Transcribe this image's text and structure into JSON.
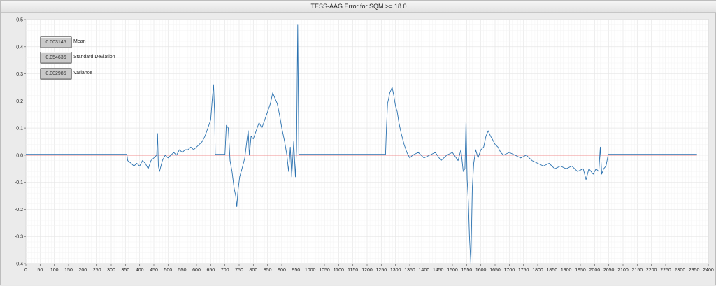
{
  "window": {
    "title": "TESS-AAG Error for SQM >= 18.0"
  },
  "stats": [
    {
      "value": "0.003145",
      "label": "Mean"
    },
    {
      "value": "0.054636",
      "label": "Standard Deviation"
    },
    {
      "value": "0.002985",
      "label": "Variance"
    }
  ],
  "colors": {
    "series": "#2b72b0",
    "reference": "#f07070",
    "grid": "#e6e6e6",
    "background": "#ffffff"
  },
  "chart_data": {
    "type": "line",
    "title": "TESS-AAG Error for SQM >= 18.0",
    "xlabel": "",
    "ylabel": "",
    "xlim": [
      0,
      2400
    ],
    "ylim": [
      -0.4,
      0.5
    ],
    "x_ticks": [
      0,
      50,
      100,
      150,
      200,
      250,
      300,
      350,
      400,
      450,
      500,
      550,
      600,
      650,
      700,
      750,
      800,
      850,
      900,
      950,
      1000,
      1050,
      1100,
      1150,
      1200,
      1250,
      1300,
      1350,
      1400,
      1450,
      1500,
      1550,
      1600,
      1650,
      1700,
      1750,
      1800,
      1850,
      1900,
      1950,
      2000,
      2050,
      2100,
      2150,
      2200,
      2250,
      2300,
      2350,
      2400
    ],
    "y_ticks": [
      -0.4,
      -0.3,
      -0.2,
      -0.1,
      0.0,
      0.1,
      0.2,
      0.3,
      0.4,
      0.5
    ],
    "y_tick_labels": [
      "-0.4",
      "-0.3",
      "-0.2",
      "-0.1",
      "0.0",
      "0.1",
      "0.2",
      "0.3",
      "0.4",
      "0.5"
    ],
    "grid": true,
    "series": [
      {
        "style": "line",
        "points": [
          [
            0,
            0.003
          ],
          [
            355,
            0.003
          ],
          [
            358,
            -0.02
          ],
          [
            370,
            -0.03
          ],
          [
            380,
            -0.04
          ],
          [
            390,
            -0.03
          ],
          [
            400,
            -0.04
          ],
          [
            410,
            -0.02
          ],
          [
            420,
            -0.03
          ],
          [
            430,
            -0.05
          ],
          [
            440,
            -0.02
          ],
          [
            450,
            -0.01
          ],
          [
            460,
            0.0
          ],
          [
            463,
            0.08
          ],
          [
            466,
            -0.04
          ],
          [
            470,
            -0.06
          ],
          [
            480,
            -0.02
          ],
          [
            490,
            0.0
          ],
          [
            500,
            -0.01
          ],
          [
            510,
            0.0
          ],
          [
            520,
            0.01
          ],
          [
            530,
            0.0
          ],
          [
            540,
            0.02
          ],
          [
            550,
            0.01
          ],
          [
            560,
            0.02
          ],
          [
            570,
            0.02
          ],
          [
            580,
            0.03
          ],
          [
            590,
            0.02
          ],
          [
            600,
            0.03
          ],
          [
            610,
            0.04
          ],
          [
            620,
            0.05
          ],
          [
            630,
            0.07
          ],
          [
            640,
            0.1
          ],
          [
            650,
            0.13
          ],
          [
            655,
            0.2
          ],
          [
            660,
            0.26
          ],
          [
            664,
            0.15
          ],
          [
            666,
            0.003
          ],
          [
            700,
            0.003
          ],
          [
            705,
            0.11
          ],
          [
            712,
            0.1
          ],
          [
            718,
            -0.02
          ],
          [
            725,
            -0.06
          ],
          [
            732,
            -0.12
          ],
          [
            738,
            -0.15
          ],
          [
            742,
            -0.19
          ],
          [
            746,
            -0.13
          ],
          [
            752,
            -0.08
          ],
          [
            760,
            -0.05
          ],
          [
            770,
            -0.01
          ],
          [
            778,
            0.06
          ],
          [
            782,
            0.09
          ],
          [
            786,
            0.0
          ],
          [
            792,
            0.07
          ],
          [
            800,
            0.06
          ],
          [
            810,
            0.09
          ],
          [
            820,
            0.12
          ],
          [
            830,
            0.1
          ],
          [
            840,
            0.13
          ],
          [
            850,
            0.16
          ],
          [
            860,
            0.19
          ],
          [
            868,
            0.23
          ],
          [
            876,
            0.21
          ],
          [
            884,
            0.19
          ],
          [
            892,
            0.15
          ],
          [
            900,
            0.1
          ],
          [
            910,
            0.05
          ],
          [
            918,
            0.0
          ],
          [
            924,
            -0.06
          ],
          [
            930,
            0.03
          ],
          [
            935,
            -0.08
          ],
          [
            942,
            0.05
          ],
          [
            948,
            -0.08
          ],
          [
            952,
            0.02
          ],
          [
            956,
            0.48
          ],
          [
            960,
            0.003
          ],
          [
            1265,
            0.003
          ],
          [
            1268,
            0.1
          ],
          [
            1272,
            0.19
          ],
          [
            1280,
            0.23
          ],
          [
            1288,
            0.25
          ],
          [
            1294,
            0.22
          ],
          [
            1300,
            0.18
          ],
          [
            1306,
            0.16
          ],
          [
            1312,
            0.12
          ],
          [
            1320,
            0.08
          ],
          [
            1330,
            0.04
          ],
          [
            1340,
            0.01
          ],
          [
            1350,
            -0.01
          ],
          [
            1360,
            0.0
          ],
          [
            1380,
            0.01
          ],
          [
            1400,
            -0.01
          ],
          [
            1420,
            0.0
          ],
          [
            1440,
            0.01
          ],
          [
            1460,
            -0.02
          ],
          [
            1480,
            0.0
          ],
          [
            1500,
            0.01
          ],
          [
            1520,
            -0.02
          ],
          [
            1530,
            0.02
          ],
          [
            1538,
            -0.06
          ],
          [
            1544,
            -0.05
          ],
          [
            1548,
            0.13
          ],
          [
            1552,
            -0.09
          ],
          [
            1556,
            -0.17
          ],
          [
            1560,
            -0.3
          ],
          [
            1565,
            -0.4
          ],
          [
            1570,
            -0.12
          ],
          [
            1575,
            -0.03
          ],
          [
            1582,
            0.02
          ],
          [
            1590,
            -0.01
          ],
          [
            1600,
            0.02
          ],
          [
            1610,
            0.03
          ],
          [
            1618,
            0.07
          ],
          [
            1626,
            0.09
          ],
          [
            1634,
            0.07
          ],
          [
            1640,
            0.06
          ],
          [
            1650,
            0.04
          ],
          [
            1660,
            0.03
          ],
          [
            1670,
            0.01
          ],
          [
            1680,
            0.0
          ],
          [
            1700,
            0.01
          ],
          [
            1720,
            0.0
          ],
          [
            1740,
            -0.01
          ],
          [
            1760,
            0.0
          ],
          [
            1780,
            -0.02
          ],
          [
            1800,
            -0.03
          ],
          [
            1820,
            -0.04
          ],
          [
            1840,
            -0.03
          ],
          [
            1860,
            -0.05
          ],
          [
            1880,
            -0.04
          ],
          [
            1900,
            -0.05
          ],
          [
            1920,
            -0.04
          ],
          [
            1940,
            -0.06
          ],
          [
            1960,
            -0.05
          ],
          [
            1970,
            -0.09
          ],
          [
            1980,
            -0.05
          ],
          [
            1995,
            -0.07
          ],
          [
            2005,
            -0.05
          ],
          [
            2015,
            -0.06
          ],
          [
            2020,
            0.03
          ],
          [
            2025,
            -0.07
          ],
          [
            2032,
            -0.05
          ],
          [
            2040,
            -0.04
          ],
          [
            2048,
            0.003
          ],
          [
            2360,
            0.003
          ]
        ]
      },
      {
        "style": "reference",
        "points": [
          [
            0,
            0.0
          ],
          [
            2360,
            0.0
          ]
        ]
      }
    ]
  }
}
